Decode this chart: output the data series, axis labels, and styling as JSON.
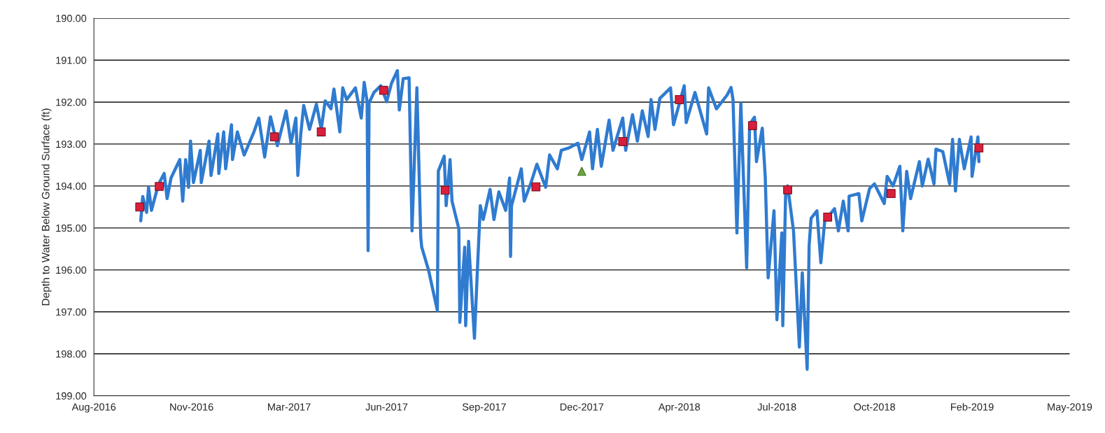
{
  "chart_data": {
    "type": "line",
    "ylabel": "Depth to Water Below Ground Surface (ft)",
    "ylim": [
      199,
      190
    ],
    "yticks": [
      {
        "value": 190,
        "label": "190.00"
      },
      {
        "value": 191,
        "label": "191.00"
      },
      {
        "value": 192,
        "label": "192.00"
      },
      {
        "value": 193,
        "label": "193.00"
      },
      {
        "value": 194,
        "label": "194.00"
      },
      {
        "value": 195,
        "label": "195.00"
      },
      {
        "value": 196,
        "label": "196.00"
      },
      {
        "value": 197,
        "label": "197.00"
      },
      {
        "value": 198,
        "label": "198.00"
      },
      {
        "value": 199,
        "label": "199.00"
      }
    ],
    "xlim": [
      "2016-08-16",
      "2019-05-13"
    ],
    "xticks": [
      {
        "value": "2016-08-16",
        "label": "Aug-2016"
      },
      {
        "value": "2016-11-24",
        "label": "Nov-2016"
      },
      {
        "value": "2017-03-04",
        "label": "Mar-2017"
      },
      {
        "value": "2017-06-12",
        "label": "Jun-2017"
      },
      {
        "value": "2017-09-20",
        "label": "Sep-2017"
      },
      {
        "value": "2017-12-29",
        "label": "Dec-2017"
      },
      {
        "value": "2018-04-08",
        "label": "Apr-2018"
      },
      {
        "value": "2018-07-17",
        "label": "Jul-2018"
      },
      {
        "value": "2018-10-25",
        "label": "Oct-2018"
      },
      {
        "value": "2019-02-02",
        "label": "Feb-2019"
      },
      {
        "value": "2019-05-13",
        "label": "May-2019"
      }
    ],
    "grid": "y",
    "series": [
      {
        "color": "#2f7bd0",
        "marker": "none",
        "line_style": "solid",
        "x": [
          "2016-10-03",
          "2016-10-05",
          "2016-10-09",
          "2016-10-11",
          "2016-10-14",
          "2016-10-21",
          "2016-10-27",
          "2016-10-30",
          "2016-11-03",
          "2016-11-12",
          "2016-11-15",
          "2016-11-18",
          "2016-11-21",
          "2016-11-23",
          "2016-11-26",
          "2016-12-03",
          "2016-12-04",
          "2016-12-12",
          "2016-12-14",
          "2016-12-21",
          "2016-12-22",
          "2016-12-27",
          "2016-12-29",
          "2017-01-04",
          "2017-01-05",
          "2017-01-10",
          "2017-01-17",
          "2017-01-27",
          "2017-02-01",
          "2017-02-07",
          "2017-02-13",
          "2017-02-20",
          "2017-03-01",
          "2017-03-06",
          "2017-03-11",
          "2017-03-13",
          "2017-03-16",
          "2017-03-19",
          "2017-03-25",
          "2017-04-01",
          "2017-04-06",
          "2017-04-10",
          "2017-04-16",
          "2017-04-19",
          "2017-04-25",
          "2017-04-28",
          "2017-05-02",
          "2017-05-11",
          "2017-05-17",
          "2017-05-20",
          "2017-05-23",
          "2017-05-24",
          "2017-05-25",
          "2017-05-30",
          "2017-06-06",
          "2017-06-12",
          "2017-06-17",
          "2017-06-23",
          "2017-06-25",
          "2017-06-29",
          "2017-07-05",
          "2017-07-08",
          "2017-07-13",
          "2017-07-17",
          "2017-07-18",
          "2017-07-25",
          "2017-08-03",
          "2017-08-04",
          "2017-08-10",
          "2017-08-12",
          "2017-08-16",
          "2017-08-18",
          "2017-08-25",
          "2017-08-26",
          "2017-08-31",
          "2017-09-01",
          "2017-09-04",
          "2017-09-10",
          "2017-09-13",
          "2017-09-16",
          "2017-09-19",
          "2017-09-26",
          "2017-09-30",
          "2017-10-05",
          "2017-10-12",
          "2017-10-16",
          "2017-10-17",
          "2017-10-18",
          "2017-10-28",
          "2017-10-31",
          "2017-11-07",
          "2017-11-13",
          "2017-11-22",
          "2017-11-26",
          "2017-12-04",
          "2017-12-08",
          "2017-12-16",
          "2017-12-25",
          "2017-12-29",
          "2018-01-06",
          "2018-01-09",
          "2018-01-14",
          "2018-01-18",
          "2018-01-26",
          "2018-01-30",
          "2018-02-09",
          "2018-02-12",
          "2018-02-19",
          "2018-02-24",
          "2018-03-01",
          "2018-03-07",
          "2018-03-10",
          "2018-03-14",
          "2018-03-19",
          "2018-03-30",
          "2018-04-02",
          "2018-04-13",
          "2018-04-15",
          "2018-04-24",
          "2018-05-06",
          "2018-05-08",
          "2018-05-16",
          "2018-05-27",
          "2018-05-31",
          "2018-06-02",
          "2018-06-06",
          "2018-06-10",
          "2018-06-16",
          "2018-06-19",
          "2018-06-24",
          "2018-06-26",
          "2018-07-02",
          "2018-07-05",
          "2018-07-08",
          "2018-07-14",
          "2018-07-17",
          "2018-07-22",
          "2018-07-23",
          "2018-07-26",
          "2018-07-28",
          "2018-08-03",
          "2018-08-09",
          "2018-08-12",
          "2018-08-17",
          "2018-08-19",
          "2018-08-21",
          "2018-08-27",
          "2018-08-31",
          "2018-09-04",
          "2018-09-14",
          "2018-09-18",
          "2018-09-23",
          "2018-09-28",
          "2018-09-29",
          "2018-10-09",
          "2018-10-12",
          "2018-10-20",
          "2018-10-25",
          "2018-11-04",
          "2018-11-07",
          "2018-11-13",
          "2018-11-20",
          "2018-11-23",
          "2018-11-27",
          "2018-12-01",
          "2018-12-10",
          "2018-12-13",
          "2018-12-19",
          "2018-12-25",
          "2018-12-27",
          "2019-01-03",
          "2019-01-10",
          "2019-01-13",
          "2019-01-16",
          "2019-01-20",
          "2019-01-25",
          "2019-02-01",
          "2019-02-02",
          "2019-02-08",
          "2019-02-09"
        ],
        "values": [
          194.83,
          194.25,
          194.63,
          194.03,
          194.58,
          193.97,
          193.7,
          194.3,
          193.81,
          193.37,
          194.36,
          193.37,
          194.03,
          192.93,
          193.92,
          193.15,
          193.92,
          192.93,
          193.75,
          192.76,
          193.7,
          192.71,
          193.59,
          192.54,
          193.37,
          192.71,
          193.26,
          192.71,
          192.38,
          193.31,
          192.35,
          193.04,
          192.21,
          192.98,
          192.38,
          193.75,
          192.76,
          192.08,
          192.65,
          192.05,
          192.65,
          191.97,
          192.16,
          191.69,
          192.71,
          191.66,
          191.94,
          191.66,
          192.38,
          191.53,
          191.99,
          195.54,
          192.02,
          191.77,
          191.61,
          191.99,
          191.55,
          191.25,
          192.19,
          191.44,
          191.42,
          195.07,
          191.66,
          195.24,
          195.46,
          196.01,
          196.97,
          193.64,
          193.29,
          194.47,
          193.37,
          194.36,
          195.02,
          197.25,
          195.46,
          197.33,
          195.32,
          197.63,
          196.01,
          194.47,
          194.8,
          194.08,
          194.8,
          194.14,
          194.58,
          193.81,
          195.68,
          194.47,
          193.59,
          194.36,
          193.92,
          193.48,
          194.03,
          193.26,
          193.59,
          193.15,
          193.09,
          192.98,
          193.37,
          192.71,
          193.59,
          192.65,
          193.53,
          192.43,
          193.15,
          192.38,
          193.15,
          192.3,
          192.93,
          192.21,
          192.82,
          191.94,
          192.65,
          191.91,
          191.66,
          192.54,
          191.61,
          192.49,
          191.77,
          192.76,
          191.66,
          192.16,
          191.83,
          191.65,
          191.94,
          195.12,
          192.03,
          195.95,
          192.53,
          192.36,
          193.42,
          192.62,
          193.77,
          196.19,
          194.59,
          197.19,
          195.12,
          197.33,
          194.12,
          194.0,
          195.07,
          197.84,
          196.07,
          198.37,
          195.42,
          194.77,
          194.59,
          195.83,
          194.83,
          194.54,
          195.07,
          194.36,
          195.07,
          194.24,
          194.18,
          194.83,
          194.06,
          193.95,
          194.42,
          193.77,
          194.0,
          193.53,
          195.07,
          193.65,
          194.3,
          193.42,
          194.0,
          193.36,
          193.95,
          193.12,
          193.18,
          193.95,
          192.89,
          194.12,
          192.89,
          193.59,
          192.83,
          193.77,
          192.83,
          193.42
        ]
      },
      {
        "type": "scatter",
        "color": "#d91f3c",
        "marker": "square",
        "x": [
          "2016-10-02",
          "2016-10-22",
          "2017-02-17",
          "2017-04-06",
          "2017-06-09",
          "2017-08-11",
          "2017-11-12",
          "2018-02-09",
          "2018-04-08",
          "2018-06-22",
          "2018-07-28",
          "2018-09-07",
          "2018-11-11",
          "2019-02-09"
        ],
        "values": [
          194.5,
          194.01,
          192.83,
          192.71,
          191.72,
          194.1,
          194.02,
          192.94,
          191.94,
          192.56,
          194.09,
          194.74,
          194.18,
          193.09
        ]
      },
      {
        "type": "scatter",
        "color": "#6aa83c",
        "marker": "triangle",
        "x": [
          "2017-12-29"
        ],
        "values": [
          193.65
        ]
      }
    ]
  }
}
